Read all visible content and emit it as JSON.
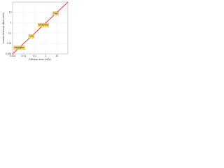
{
  "chart_data": {
    "type": "line",
    "x_label": "Effective dose (mSv)",
    "y_label": "Lowest observed effect (mSv)",
    "log_x": true,
    "log_y": true,
    "grid": true,
    "xlim": [
      0.001,
      100
    ],
    "ylim": [
      0.001,
      100
    ],
    "xticks": [
      0.001,
      0.01,
      0.1,
      1,
      10
    ],
    "yticks": [
      0.001,
      0.01,
      0.1,
      1,
      10
    ],
    "x": [
      0.001,
      100
    ],
    "series": [
      {
        "color": "#e8352b",
        "values": [
          0.001,
          100
        ]
      }
    ],
    "annotations": [
      {
        "text": "Negligible",
        "x": 0.004,
        "y": 0.004
      },
      {
        "text": "Low",
        "x": 0.05,
        "y": 0.05
      },
      {
        "text": "Moderate",
        "x": 0.6,
        "y": 0.6
      },
      {
        "text": "High",
        "x": 8,
        "y": 8
      }
    ]
  }
}
